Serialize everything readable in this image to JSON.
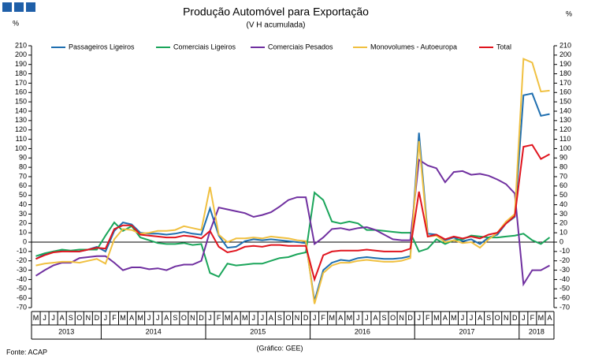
{
  "chart_data": {
    "type": "line",
    "title": "Produção Automóvel para Exportação",
    "subtitle": "(V H acumulada)",
    "ylabel": "%",
    "y2label": "%",
    "source": "Fonte: ACAP",
    "credit": "(Gráfico: GEE)",
    "categories": [
      "M",
      "J",
      "J",
      "A",
      "S",
      "O",
      "N",
      "D",
      "J",
      "F",
      "M",
      "A",
      "M",
      "J",
      "J",
      "A",
      "S",
      "O",
      "N",
      "D",
      "J",
      "F",
      "M",
      "A",
      "M",
      "J",
      "J",
      "A",
      "S",
      "O",
      "N",
      "D",
      "J",
      "F",
      "M",
      "A",
      "M",
      "J",
      "J",
      "A",
      "S",
      "O",
      "N",
      "D",
      "J",
      "F",
      "M",
      "A",
      "M",
      "J",
      "J",
      "A",
      "S",
      "O",
      "N",
      "D",
      "J",
      "F",
      "M",
      "A"
    ],
    "years": [
      "2013",
      "2014",
      "2015",
      "2016",
      "2017",
      "2018"
    ],
    "ylim": [
      -70,
      210
    ],
    "yticks": [
      -70,
      -60,
      -50,
      -40,
      -30,
      -20,
      -10,
      0,
      10,
      20,
      30,
      40,
      50,
      60,
      70,
      80,
      90,
      100,
      110,
      120,
      130,
      140,
      150,
      160,
      170,
      180,
      190,
      200,
      210
    ],
    "y2lim": [
      -70,
      210
    ],
    "y2ticks": [
      -70,
      -60,
      -50,
      -40,
      -30,
      -20,
      -10,
      0,
      10,
      20,
      30,
      40,
      50,
      60,
      70,
      80,
      90,
      100,
      110,
      120,
      130,
      140,
      150,
      160,
      170,
      180,
      190,
      200,
      210
    ],
    "series": [
      {
        "name": "Passageiros Ligeiros",
        "color": "#1f6fb0",
        "values": [
          -18,
          -13,
          -10,
          -9,
          -10,
          -10,
          -8,
          -5,
          -10,
          12,
          21,
          19,
          10,
          9,
          9,
          8,
          9,
          11,
          9,
          8,
          36,
          7,
          -6,
          -5,
          1,
          3,
          2,
          3,
          2,
          1,
          0,
          -1,
          -63,
          -30,
          -22,
          -19,
          -20,
          -17,
          -16,
          -17,
          -18,
          -18,
          -17,
          -15,
          117,
          9,
          8,
          2,
          5,
          1,
          3,
          -2,
          5,
          8,
          20,
          27,
          157,
          159,
          135,
          137
        ]
      },
      {
        "name": "Comerciais Ligeiros",
        "color": "#1aa55a",
        "values": [
          -15,
          -12,
          -10,
          -8,
          -9,
          -8,
          -8,
          -8,
          7,
          21,
          12,
          17,
          5,
          2,
          -1,
          -2,
          -2,
          -1,
          -3,
          -2,
          -33,
          -37,
          -23,
          -25,
          -24,
          -23,
          -23,
          -20,
          -17,
          -16,
          -13,
          -11,
          53,
          45,
          22,
          20,
          22,
          20,
          13,
          13,
          12,
          11,
          10,
          10,
          -10,
          -7,
          3,
          -2,
          2,
          3,
          7,
          6,
          5,
          5,
          6,
          7,
          9,
          2,
          -2,
          5
        ]
      },
      {
        "name": "Comerciais Pesados",
        "color": "#7030a0",
        "values": [
          -36,
          -30,
          -25,
          -22,
          -22,
          -17,
          -16,
          -15,
          -15,
          -22,
          -30,
          -27,
          -27,
          -29,
          -28,
          -30,
          -26,
          -24,
          -24,
          -20,
          12,
          37,
          35,
          33,
          31,
          27,
          29,
          32,
          38,
          45,
          48,
          48,
          -2,
          5,
          14,
          15,
          13,
          15,
          16,
          13,
          8,
          3,
          2,
          2,
          88,
          82,
          79,
          64,
          75,
          76,
          72,
          73,
          71,
          67,
          62,
          52,
          -45,
          -30,
          -30,
          -25
        ]
      },
      {
        "name": "Monovolumes - Autoeuropa",
        "color": "#f0c040",
        "values": [
          -25,
          -23,
          -22,
          -21,
          -21,
          -22,
          -20,
          -18,
          -23,
          3,
          14,
          13,
          9,
          10,
          12,
          12,
          13,
          17,
          15,
          13,
          59,
          8,
          0,
          4,
          4,
          5,
          4,
          6,
          5,
          4,
          2,
          1,
          -66,
          -33,
          -25,
          -22,
          -22,
          -20,
          -19,
          -20,
          -21,
          -21,
          -20,
          -17,
          108,
          6,
          7,
          0,
          2,
          -1,
          0,
          -6,
          3,
          10,
          22,
          30,
          196,
          192,
          161,
          162
        ]
      },
      {
        "name": "Total",
        "color": "#e0141e",
        "values": [
          -18,
          -14,
          -11,
          -10,
          -10,
          -10,
          -8,
          -6,
          -7,
          14,
          18,
          18,
          8,
          7,
          6,
          5,
          5,
          7,
          6,
          4,
          12,
          -5,
          -11,
          -9,
          -5,
          -4,
          -5,
          -3,
          -3,
          -4,
          -4,
          -4,
          -40,
          -14,
          -10,
          -9,
          -9,
          -9,
          -8,
          -9,
          -10,
          -10,
          -10,
          -7,
          54,
          6,
          8,
          3,
          6,
          4,
          6,
          4,
          8,
          10,
          20,
          28,
          102,
          104,
          89,
          94
        ]
      }
    ]
  }
}
